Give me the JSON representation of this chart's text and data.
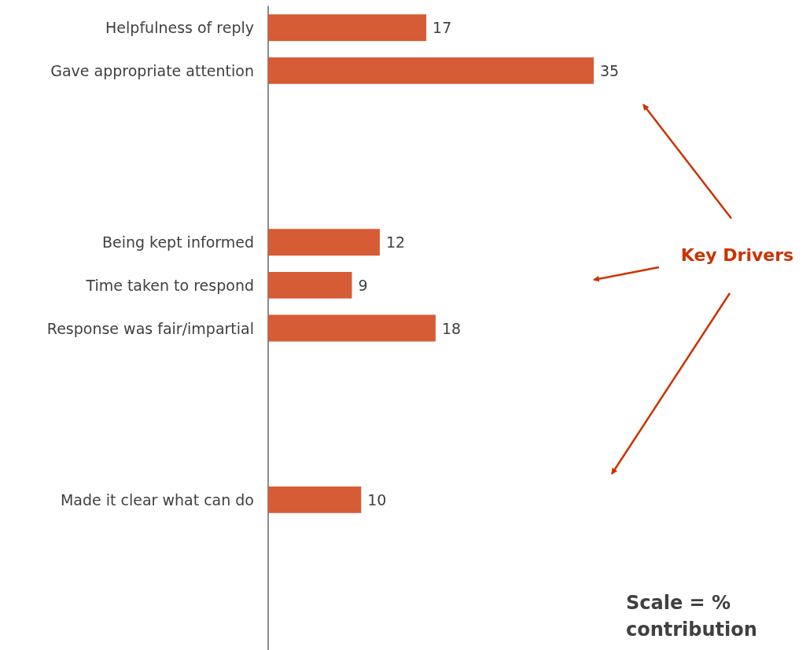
{
  "chart_data": {
    "type": "bar",
    "orientation": "horizontal",
    "color": "#d65c35",
    "data_labels": true,
    "grid": false,
    "categories": [
      "Helpfulness of reply",
      "Gave appropriate attention",
      null,
      null,
      null,
      "Being kept informed",
      "Time taken to respond",
      "Response was fair/impartial",
      null,
      null,
      null,
      "Made it clear what can do",
      null,
      null,
      null
    ],
    "values": [
      17,
      35,
      null,
      null,
      null,
      12,
      9,
      18,
      null,
      null,
      null,
      10,
      null,
      null,
      null
    ],
    "tick_labels": "y",
    "annotations": [
      "Key Drivers",
      "Scale = % contribution"
    ]
  }
}
